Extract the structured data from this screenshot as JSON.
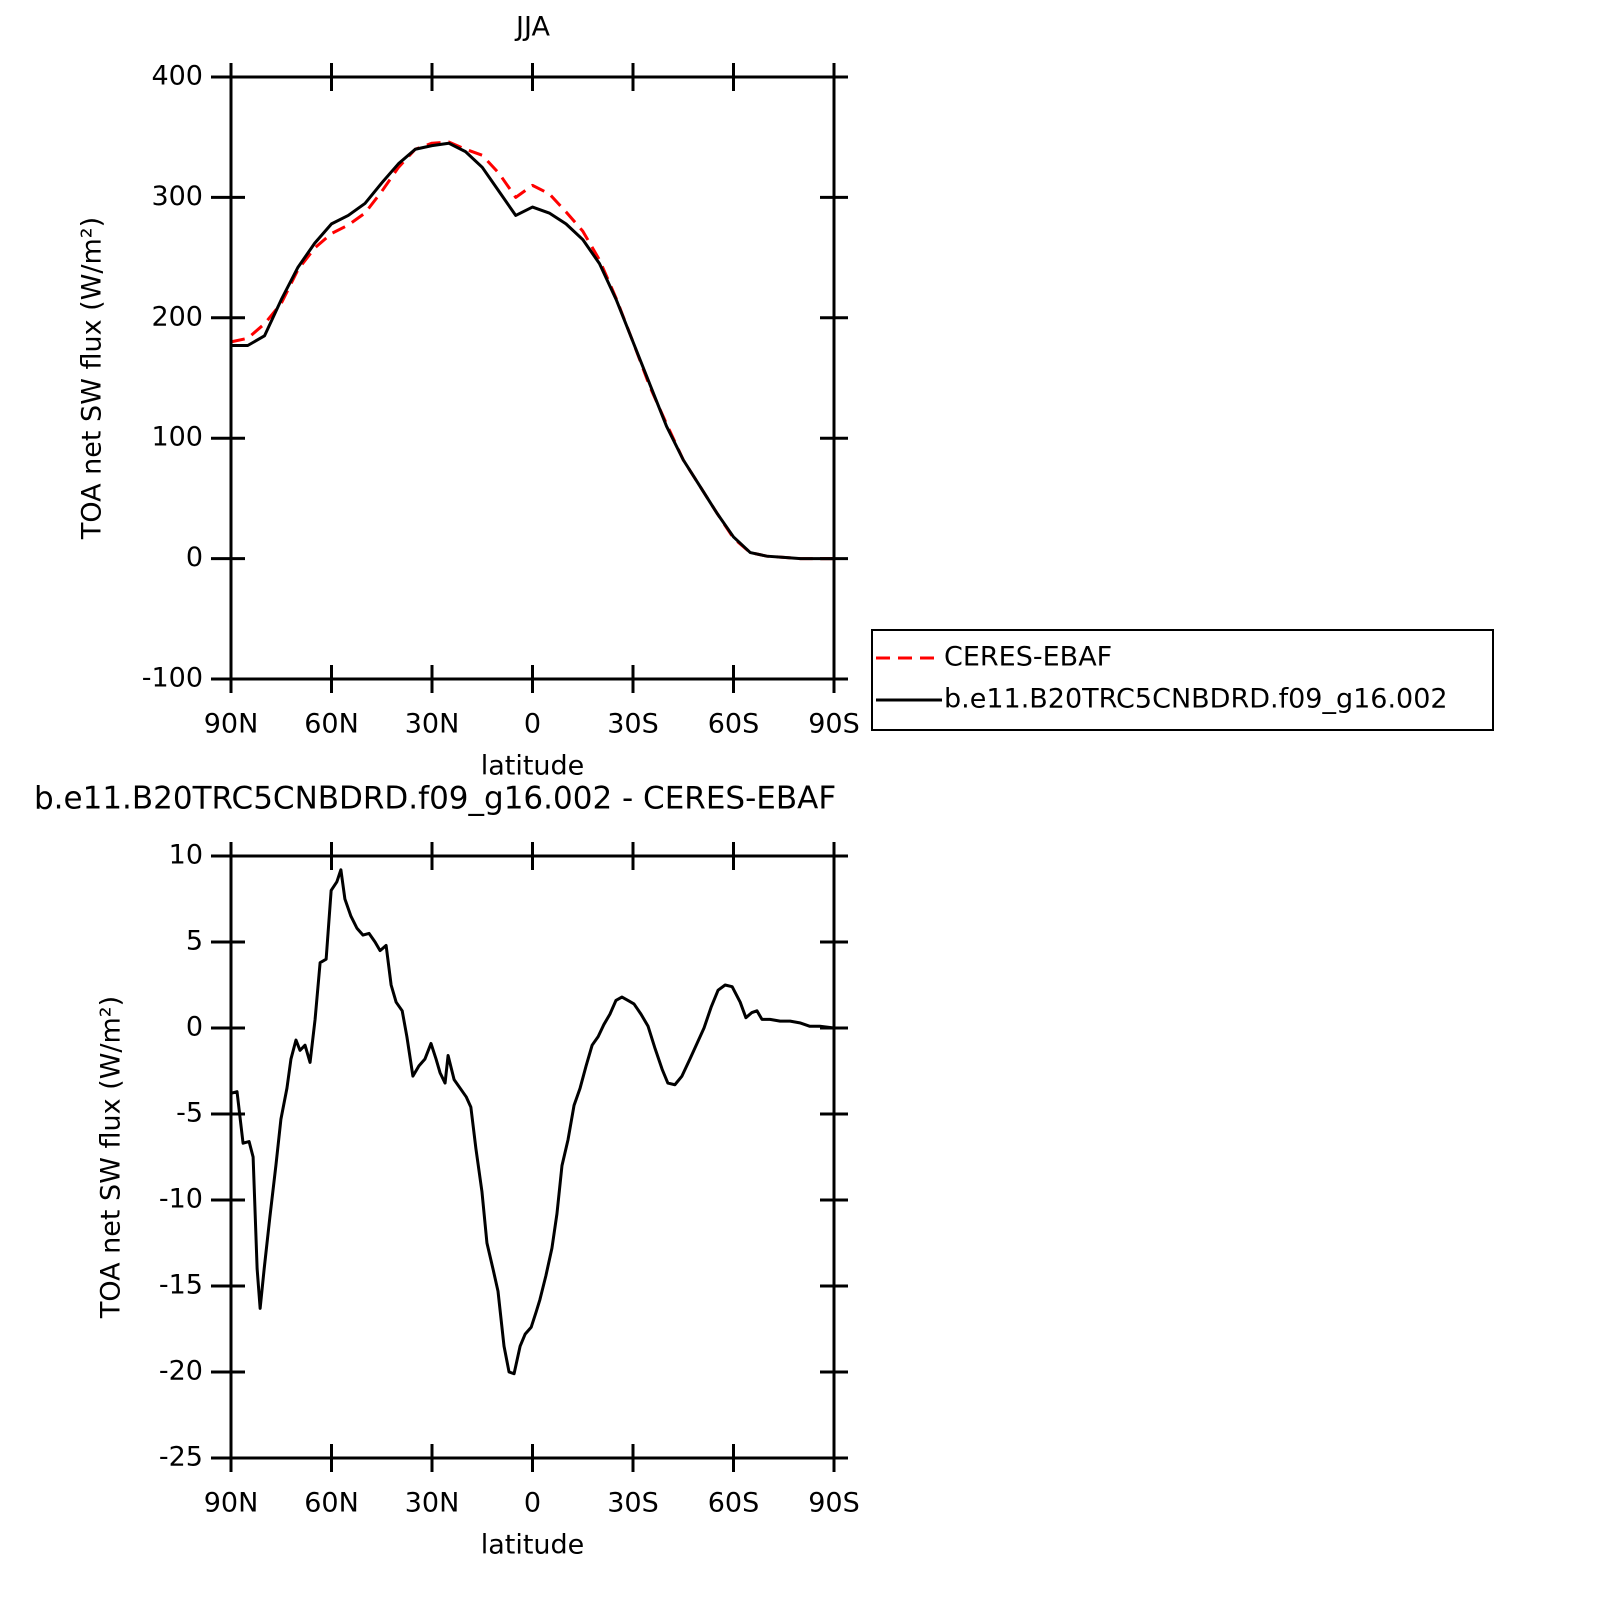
{
  "chart_data": [
    {
      "type": "line",
      "title": "JJA",
      "xlabel": "latitude",
      "ylabel": "TOA net SW flux (W/m²)",
      "x": [
        90,
        85,
        80,
        75,
        70,
        65,
        60,
        55,
        50,
        45,
        40,
        35,
        30,
        25,
        20,
        15,
        10,
        5,
        0,
        -5,
        -10,
        -15,
        -20,
        -25,
        -30,
        -35,
        -40,
        -45,
        -50,
        -55,
        -60,
        -65,
        -70,
        -75,
        -80,
        -85,
        -90
      ],
      "xlim": [
        90,
        -90
      ],
      "xticks": [
        {
          "value": 90,
          "label": "90N"
        },
        {
          "value": 60,
          "label": "60N"
        },
        {
          "value": 30,
          "label": "30N"
        },
        0,
        {
          "value": -30,
          "label": "30S"
        },
        {
          "value": -60,
          "label": "60S"
        },
        {
          "value": -90,
          "label": "90S"
        }
      ],
      "ylim": [
        -100,
        400
      ],
      "yticks": [
        -100,
        0,
        100,
        200,
        300,
        400
      ],
      "legend": "right",
      "series": [
        {
          "name": "CERES-EBAF",
          "color": "#ff0000",
          "dash": true,
          "values": [
            180,
            183,
            195,
            212,
            240,
            258,
            270,
            277,
            287,
            305,
            325,
            340,
            345,
            346,
            340,
            335,
            320,
            300,
            310,
            303,
            288,
            272,
            248,
            216,
            180,
            143,
            112,
            82,
            60,
            38,
            17,
            5,
            2,
            1,
            0,
            0,
            0
          ]
        },
        {
          "name": "b.e11.B20TRC5CNBDRD.f09_g16.002",
          "color": "#000000",
          "dash": false,
          "values": [
            177,
            177,
            185,
            215,
            242,
            262,
            278,
            285,
            295,
            312,
            328,
            340,
            343,
            345,
            338,
            325,
            305,
            285,
            292,
            287,
            278,
            265,
            245,
            215,
            180,
            145,
            110,
            82,
            60,
            38,
            18,
            5,
            2,
            1,
            0,
            0,
            0
          ]
        }
      ]
    },
    {
      "type": "line",
      "title": "b.e11.B20TRC5CNBDRD.f09_g16.002 - CERES-EBAF",
      "xlabel": "latitude",
      "ylabel": "TOA net SW flux (W/m²)",
      "x": [
        90,
        88.2,
        86.4,
        84.6,
        83.4,
        82.2,
        81.3,
        80.1,
        78.4,
        76.6,
        75.1,
        73.3,
        72.1,
        70.6,
        69.4,
        67.9,
        66.4,
        64.9,
        63.4,
        61.6,
        60.1,
        58.4,
        57.2,
        56,
        54.2,
        52.4,
        50.6,
        48.8,
        47,
        45.5,
        43.7,
        42.2,
        40.7,
        38.9,
        37.5,
        35.7,
        33.9,
        32.1,
        30.3,
        28.8,
        27.6,
        26.1,
        25.2,
        23.4,
        21.6,
        19.8,
        18.4,
        16.9,
        15.1,
        13.6,
        11.8,
        10.3,
        8.5,
        7,
        5.5,
        3.7,
        2.2,
        0.4,
        -1.1,
        -2.2,
        -4,
        -5.8,
        -7.3,
        -8.8,
        -10.6,
        -12.4,
        -14.2,
        -16,
        -17.8,
        -19.6,
        -21.3,
        -23.1,
        -24.9,
        -26.7,
        -28.5,
        -30.3,
        -32.4,
        -34.5,
        -36.6,
        -38.7,
        -40.4,
        -42.5,
        -44.6,
        -47,
        -49.1,
        -51.2,
        -53.3,
        -55.4,
        -57.5,
        -59.6,
        -62,
        -63.7,
        -65.5,
        -67,
        -68.5,
        -70.9,
        -73.9,
        -76.9,
        -79.8,
        -82.8,
        -85.8,
        -90
      ],
      "xlim": [
        90,
        -90
      ],
      "xticks": [
        {
          "value": 90,
          "label": "90N"
        },
        {
          "value": 60,
          "label": "60N"
        },
        {
          "value": 30,
          "label": "30N"
        },
        0,
        {
          "value": -30,
          "label": "30S"
        },
        {
          "value": -60,
          "label": "60S"
        },
        {
          "value": -90,
          "label": "90S"
        }
      ],
      "ylim": [
        -25,
        10
      ],
      "yticks": [
        -25,
        -20,
        -15,
        -10,
        -5,
        0,
        5,
        10
      ],
      "series": [
        {
          "color": "#000000",
          "dash": false,
          "values": [
            -3.8,
            -3.7,
            -6.7,
            -6.6,
            -7.5,
            -14,
            -16.3,
            -14,
            -11,
            -8,
            -5.3,
            -3.5,
            -1.8,
            -0.7,
            -1.3,
            -1,
            -2,
            0.5,
            3.8,
            4,
            8,
            8.5,
            9.2,
            7.5,
            6.5,
            5.8,
            5.4,
            5.5,
            5,
            4.5,
            4.8,
            2.5,
            1.5,
            1,
            -0.5,
            -2.8,
            -2.2,
            -1.8,
            -0.9,
            -1.8,
            -2.6,
            -3.2,
            -1.6,
            -3,
            -3.5,
            -4,
            -4.6,
            -7,
            -9.5,
            -12.5,
            -14,
            -15.3,
            -18.5,
            -20,
            -20.1,
            -18.5,
            -17.8,
            -17.4,
            -16.5,
            -15.8,
            -14.4,
            -12.8,
            -10.8,
            -8,
            -6.5,
            -4.5,
            -3.5,
            -2.2,
            -1,
            -0.5,
            0.2,
            0.8,
            1.6,
            1.8,
            1.6,
            1.4,
            0.8,
            0.1,
            -1.2,
            -2.4,
            -3.2,
            -3.3,
            -2.8,
            -1.8,
            -0.9,
            0,
            1.2,
            2.2,
            2.5,
            2.4,
            1.5,
            0.6,
            0.9,
            1,
            0.5,
            0.5,
            0.4,
            0.4,
            0.3,
            0.1,
            0.1,
            0
          ]
        }
      ]
    }
  ]
}
